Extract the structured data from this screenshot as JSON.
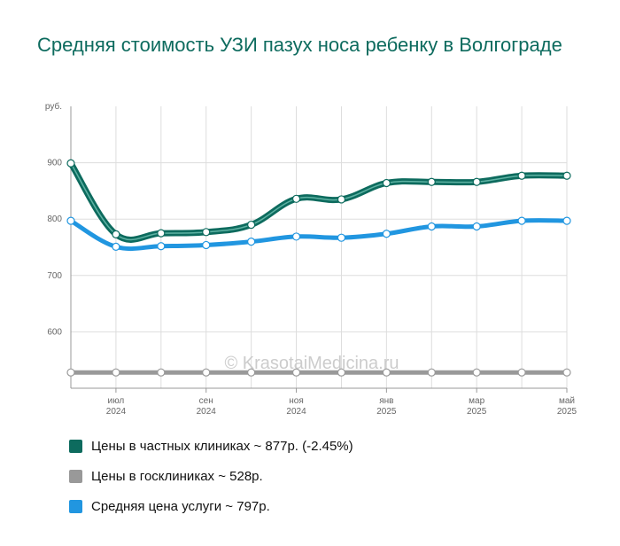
{
  "title": "Средняя стоимость УЗИ пазух носа ребенку в Волгограде",
  "watermark": "© KrasotaiMedicina.ru",
  "chart_data": {
    "type": "line",
    "unit_label": "руб.",
    "ylim": [
      500,
      1000
    ],
    "yticks": [
      600,
      700,
      800,
      900
    ],
    "grid": true,
    "x_count": 12,
    "x_tick_labels": [
      {
        "index": 1,
        "line1": "июл",
        "line2": "2024"
      },
      {
        "index": 3,
        "line1": "сен",
        "line2": "2024"
      },
      {
        "index": 5,
        "line1": "ноя",
        "line2": "2024"
      },
      {
        "index": 7,
        "line1": "янв",
        "line2": "2025"
      },
      {
        "index": 9,
        "line1": "мар",
        "line2": "2025"
      },
      {
        "index": 11,
        "line1": "май",
        "line2": "2025"
      }
    ],
    "series": [
      {
        "name": "Цены в частных клиниках",
        "color": "#0d6b5e",
        "double": true,
        "values": [
          899,
          773,
          775,
          777,
          790,
          836,
          835,
          864,
          866,
          866,
          877,
          877
        ]
      },
      {
        "name": "Цены в госклиниках",
        "color": "#999999",
        "double": false,
        "values": [
          528,
          528,
          528,
          528,
          528,
          528,
          528,
          528,
          528,
          528,
          528,
          528
        ]
      },
      {
        "name": "Средняя цена услуги",
        "color": "#2196e0",
        "double": false,
        "values": [
          797,
          751,
          752,
          754,
          760,
          769,
          767,
          774,
          787,
          787,
          797,
          797
        ]
      }
    ]
  },
  "legend": [
    {
      "label": "Цены в частных клиниках ~ 877р. (-2.45%)",
      "color": "#0d6b5e"
    },
    {
      "label": "Цены в госклиниках ~ 528р.",
      "color": "#999999"
    },
    {
      "label": "Средняя цена услуги ~ 797р.",
      "color": "#2196e0"
    }
  ]
}
